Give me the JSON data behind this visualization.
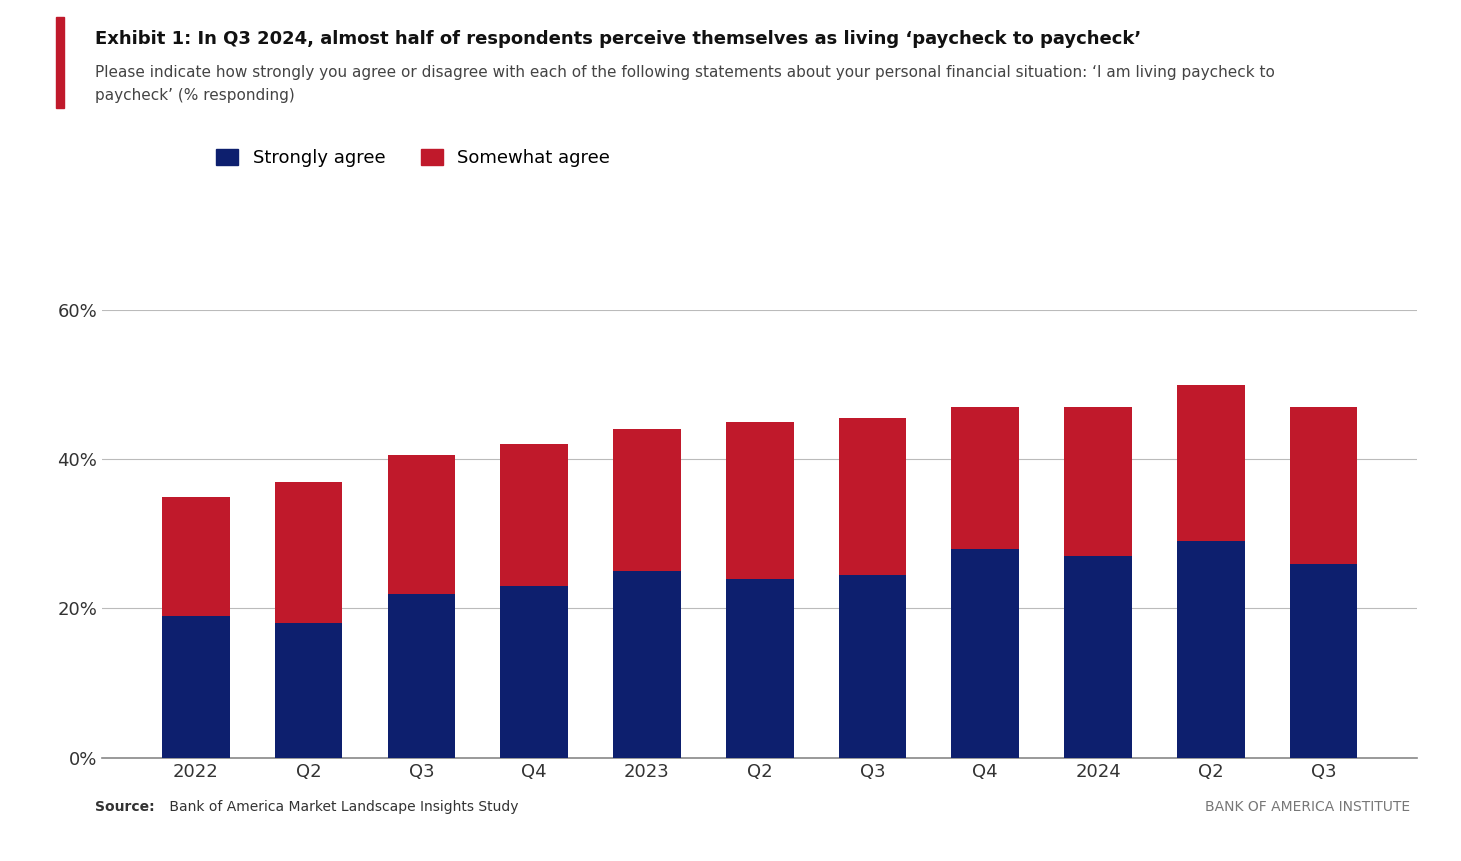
{
  "categories": [
    "2022",
    "Q2",
    "Q3",
    "Q4",
    "2023",
    "Q2",
    "Q3",
    "Q4",
    "2024",
    "Q2",
    "Q3"
  ],
  "strongly_agree": [
    19,
    18,
    22,
    23,
    25,
    24,
    24.5,
    28,
    27,
    29,
    26
  ],
  "somewhat_agree": [
    16,
    19,
    18.5,
    19,
    19,
    21,
    21,
    19,
    20,
    21,
    21
  ],
  "color_strongly": "#0d1f6e",
  "color_somewhat": "#c0192b",
  "title_line1": "Exhibit 1: In Q3 2024, almost half of respondents perceive themselves as living ‘paycheck to paycheck’",
  "subtitle_line1": "Please indicate how strongly you agree or disagree with each of the following statements about your personal financial situation: ‘I am living paycheck to",
  "subtitle_line2": "paycheck’ (% responding)",
  "legend_strongly": "Strongly agree",
  "legend_somewhat": "Somewhat agree",
  "ylim": [
    0,
    60
  ],
  "yticks": [
    0,
    20,
    40,
    60
  ],
  "ytick_labels": [
    "0%",
    "20%",
    "40%",
    "60%"
  ],
  "source_bold": "Source:",
  "source_rest": " Bank of America Market Landscape Insights Study",
  "footer_text": "BANK OF AMERICA INSTITUTE",
  "background_color": "#ffffff",
  "accent_color": "#c0192b"
}
